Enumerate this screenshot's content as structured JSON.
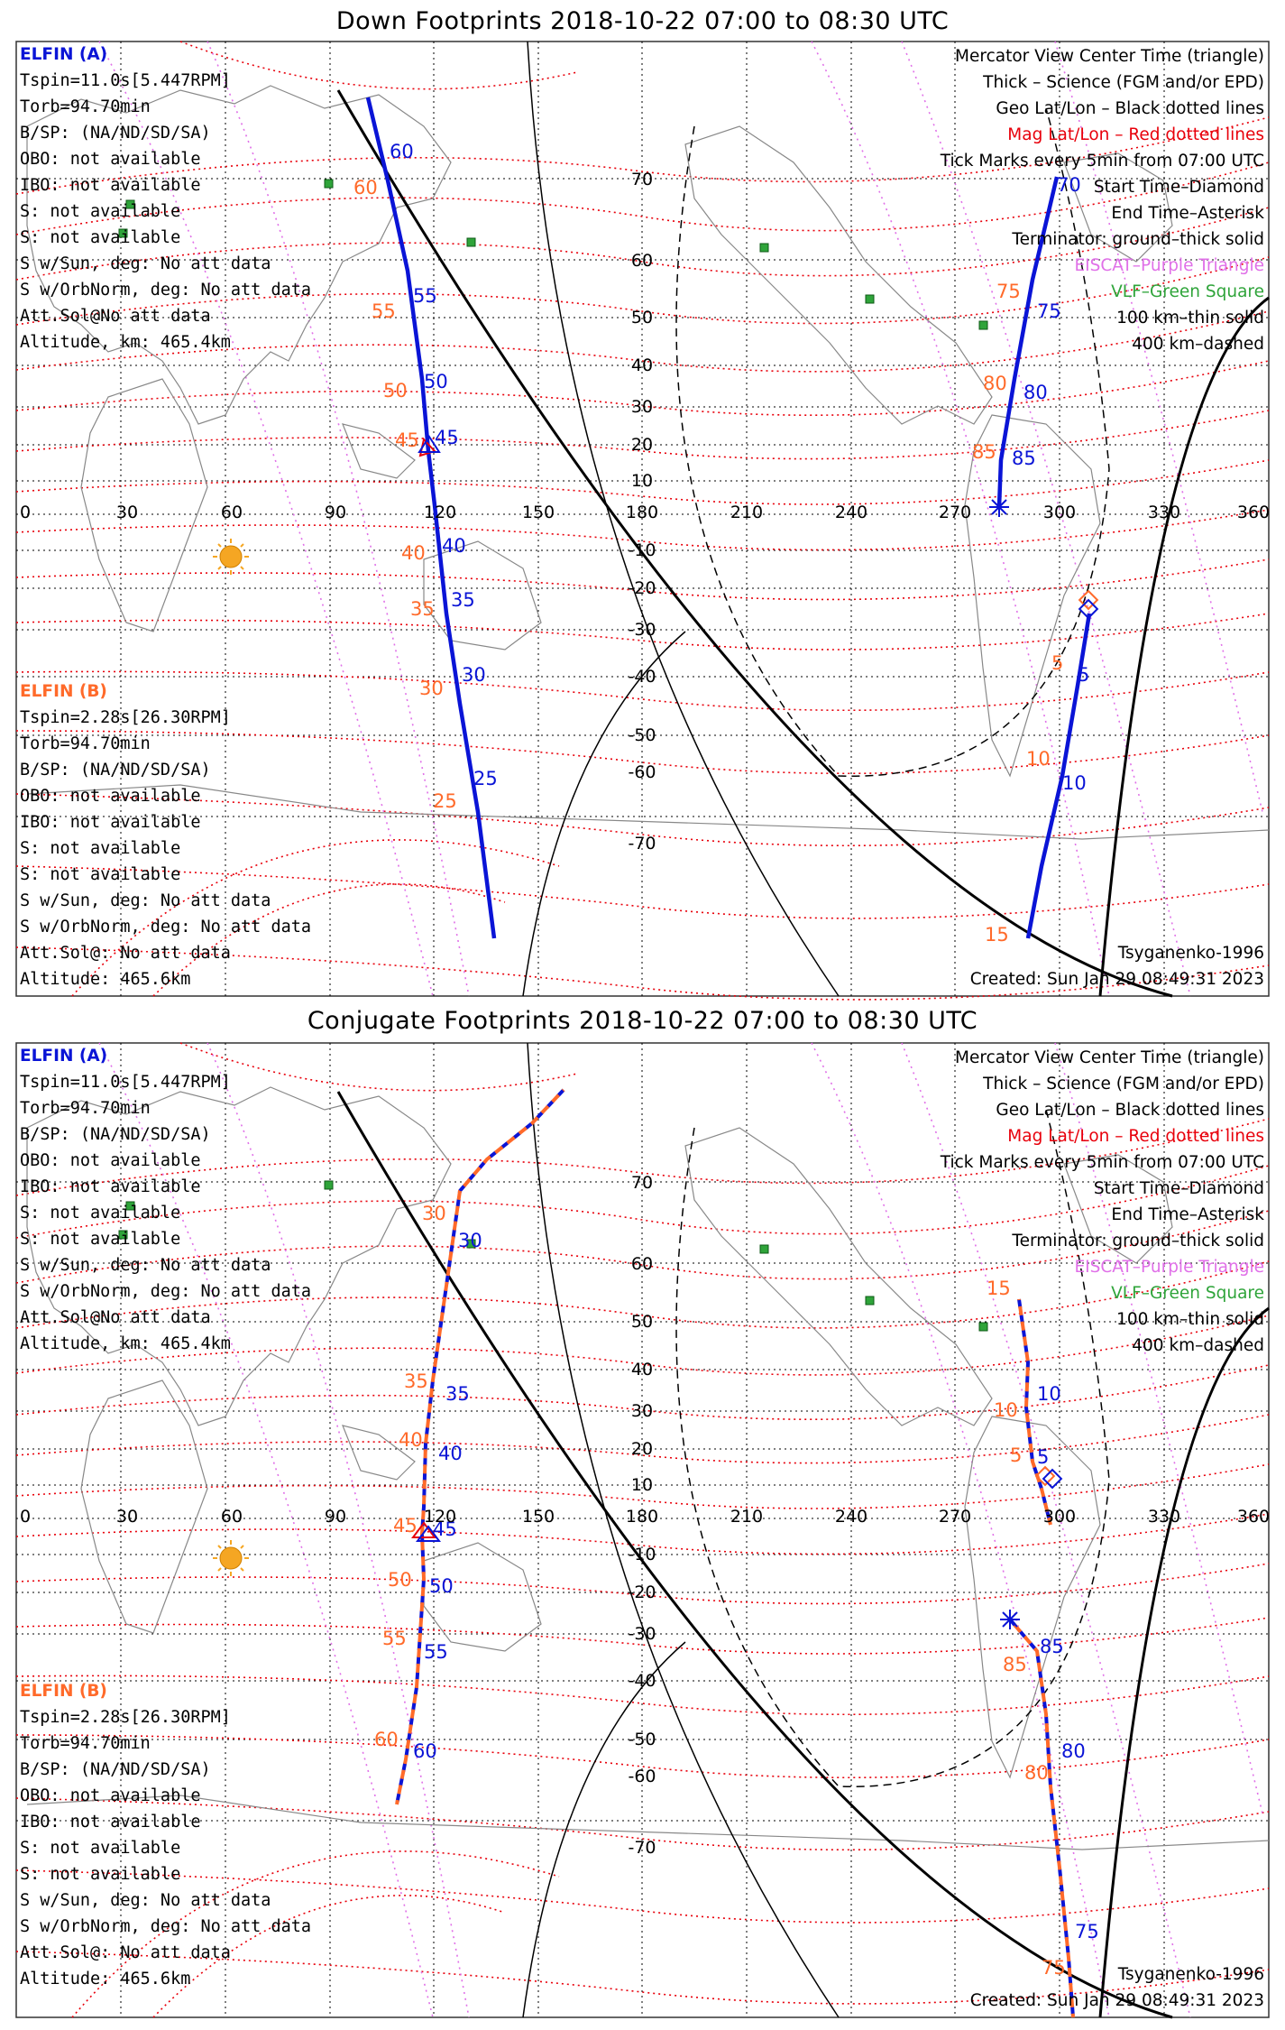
{
  "panels": [
    {
      "title": "Down Footprints 2018-10-22 07:00 to 08:30 UTC",
      "left_info_a": {
        "header": "ELFIN (A)",
        "lines": [
          "Tspin=11.0s[5.447RPM]",
          "Torb=94.70min",
          "B/SP: (NA/ND/SD/SA)",
          "OBO: not available",
          "IBO: not available",
          "S: not available",
          "S: not available",
          "S w/Sun, deg: No att data",
          "S w/OrbNorm, deg: No att data",
          "Att.Sol@No att data",
          "Altitude, km: 465.4km"
        ]
      },
      "left_info_b": {
        "header": "ELFIN (B)",
        "lines": [
          "Tspin=2.28s[26.30RPM]",
          "Torb=94.70min",
          "B/SP: (NA/ND/SD/SA)",
          "OBO: not available",
          "IBO: not available",
          "S: not available",
          "S: not available",
          "S w/Sun, deg: No att data",
          "S w/OrbNorm, deg: No att data",
          "Att.Sol@: No att data",
          "Altitude: 465.6km"
        ]
      },
      "model": "Tsyganenko-1996",
      "created": "Created: Sun Jan 29 08:49:31 2023",
      "trackA_labels": [
        "60",
        "55",
        "50",
        "45",
        "40",
        "35",
        "30",
        "25"
      ],
      "trackA_mag_labels": [
        "60",
        "55",
        "50",
        "45",
        "40",
        "35",
        "30",
        "25"
      ],
      "trackB_labels": [
        "70",
        "75",
        "80",
        "85",
        "5",
        "10"
      ],
      "trackB_mag_labels": [
        "75",
        "80",
        "85",
        "5",
        "10",
        "15"
      ]
    },
    {
      "title": "Conjugate Footprints 2018-10-22 07:00 to 08:30 UTC",
      "left_info_a": {
        "header": "ELFIN (A)",
        "lines": [
          "Tspin=11.0s[5.447RPM]",
          "Torb=94.70min",
          "B/SP: (NA/ND/SD/SA)",
          "OBO: not available",
          "IBO: not available",
          "S: not available",
          "S: not available",
          "S w/Sun, deg: No att data",
          "S w/OrbNorm, deg: No att data",
          "Att.Sol@No att data",
          "Altitude, km: 465.4km"
        ]
      },
      "left_info_b": {
        "header": "ELFIN (B)",
        "lines": [
          "Tspin=2.28s[26.30RPM]",
          "Torb=94.70min",
          "B/SP: (NA/ND/SD/SA)",
          "OBO: not available",
          "IBO: not available",
          "S: not available",
          "S: not available",
          "S w/Sun, deg: No att data",
          "S w/OrbNorm, deg: No att data",
          "Att.Sol@: No att data",
          "Altitude: 465.6km"
        ]
      },
      "model": "Tsyganenko-1996",
      "created": "Created: Sun Jan 29 08:49:31 2023",
      "trackA_labels": [
        "30",
        "35",
        "40",
        "45",
        "50",
        "55",
        "60"
      ],
      "trackA_mag_labels": [
        "30",
        "35",
        "40",
        "45",
        "50",
        "55",
        "60"
      ],
      "trackB_labels": [
        "10",
        "5",
        "85",
        "80",
        "75"
      ],
      "trackB_mag_labels": [
        "15",
        "10",
        "5",
        "85",
        "80",
        "75"
      ]
    }
  ],
  "legend": [
    {
      "text": "Mercator View Center Time (triangle)",
      "color": "#000000"
    },
    {
      "text": "Thick – Science (FGM and/or EPD)",
      "color": "#000000"
    },
    {
      "text": "Geo Lat/Lon – Black dotted lines",
      "color": "#000000"
    },
    {
      "text": "Mag Lat/Lon – Red dotted lines",
      "color": "#e8000b"
    },
    {
      "text": "Tick Marks every 5min from 07:00 UTC",
      "color": "#000000"
    },
    {
      "text": "Start Time–Diamond",
      "color": "#000000"
    },
    {
      "text": "End Time–Asterisk",
      "color": "#000000"
    },
    {
      "text": "Terminator: ground–thick solid",
      "color": "#000000"
    },
    {
      "text": "EISCAT–Purple Triangle",
      "color": "#e070e8"
    },
    {
      "text": "VLF–Green Square",
      "color": "#2fa43a"
    },
    {
      "text": "100 km–thin solid",
      "color": "#000000"
    },
    {
      "text": "400 km–dashed",
      "color": "#000000"
    }
  ],
  "lon_ticks": [
    "0",
    "30",
    "60",
    "90",
    "120",
    "150",
    "180",
    "210",
    "240",
    "270",
    "300",
    "330",
    "360"
  ],
  "lat_ticks": [
    "70",
    "60",
    "50",
    "40",
    "30",
    "20",
    "10",
    "-10",
    "-20",
    "-30",
    "-40",
    "-50",
    "-60",
    "-70"
  ],
  "colors": {
    "elfin_a": "#0a14d6",
    "elfin_b": "#ff6a2a",
    "mag": "#e8000b",
    "sun": "#f5a623"
  }
}
